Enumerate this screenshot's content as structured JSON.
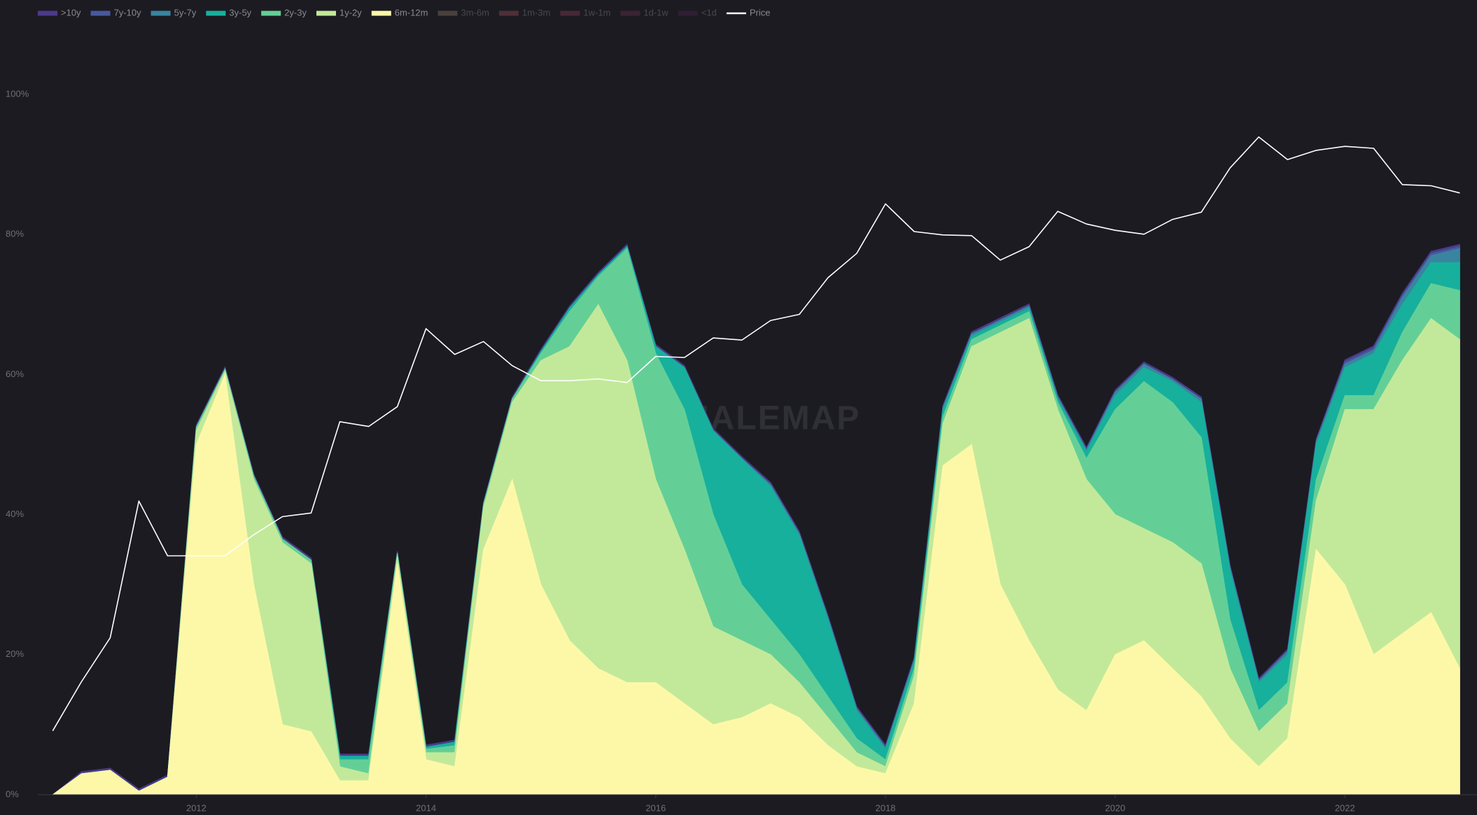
{
  "chart_data": {
    "type": "area",
    "watermark": "WHALEMAP",
    "x": [
      2010.75,
      2011.0,
      2011.25,
      2011.5,
      2011.75,
      2012.0,
      2012.25,
      2012.5,
      2012.75,
      2013.0,
      2013.25,
      2013.5,
      2013.75,
      2014.0,
      2014.25,
      2014.5,
      2014.75,
      2015.0,
      2015.25,
      2015.5,
      2015.75,
      2016.0,
      2016.25,
      2016.5,
      2016.75,
      2017.0,
      2017.25,
      2017.5,
      2017.75,
      2018.0,
      2018.25,
      2018.5,
      2018.75,
      2019.0,
      2019.25,
      2019.5,
      2019.75,
      2020.0,
      2020.25,
      2020.5,
      2020.75,
      2021.0,
      2021.25,
      2021.5,
      2021.75,
      2022.0,
      2022.25,
      2022.5,
      2022.75,
      2023.0
    ],
    "xlim": [
      2010.62,
      2023.15
    ],
    "xticks": [
      2012,
      2014,
      2016,
      2018,
      2020,
      2022
    ],
    "ylim": [
      0,
      100
    ],
    "yticks": [
      {
        "value": 0,
        "label": "0%"
      },
      {
        "value": 20,
        "label": "20%"
      },
      {
        "value": 40,
        "label": "40%"
      },
      {
        "value": 60,
        "label": "60%"
      },
      {
        "value": 80,
        "label": "80%"
      },
      {
        "value": 100,
        "label": "100%"
      }
    ],
    "y2lim": [
      0.024,
      150000
    ],
    "y2scale": "log",
    "grid": false,
    "legend": "top-left",
    "series": [
      {
        "name": ">10y",
        "color": "#4b3a8a",
        "values": [
          0,
          0.3,
          0.3,
          0.3,
          0.3,
          0.3,
          0.3,
          0.3,
          0.3,
          0.3,
          0.3,
          0.3,
          0.3,
          0.3,
          0.3,
          0.3,
          0.3,
          0.3,
          0.3,
          0.3,
          0.3,
          0.3,
          0.3,
          0.3,
          0.3,
          0.3,
          0.3,
          0.3,
          0.3,
          0.3,
          0.3,
          0.3,
          0.3,
          0.3,
          0.3,
          0.3,
          0.3,
          0.3,
          0.3,
          0.3,
          0.3,
          0.3,
          0.3,
          0.3,
          0.3,
          0.3,
          0.3,
          0.3,
          0.3,
          0.3
        ]
      },
      {
        "name": "7y-10y",
        "color": "#46599e",
        "values": [
          0,
          0,
          0,
          0,
          0,
          0,
          0,
          0,
          0,
          0,
          0,
          0,
          0,
          0,
          0,
          0,
          0,
          0,
          0,
          0,
          0,
          0,
          0,
          0,
          0,
          0,
          0,
          0,
          0,
          0,
          0,
          0,
          0,
          0,
          0,
          0,
          0,
          0,
          0,
          0,
          0,
          0,
          0,
          0,
          0,
          0.3,
          0.3,
          0.3,
          0.3,
          0.3
        ]
      },
      {
        "name": "5y-7y",
        "color": "#3a84a0",
        "values": [
          0,
          0,
          0,
          0,
          0,
          0,
          0,
          0,
          0,
          0,
          0,
          0,
          0,
          0,
          0,
          0,
          0,
          0,
          0,
          0,
          0,
          0,
          0,
          0,
          0,
          0.3,
          0.3,
          0.3,
          0.3,
          0.3,
          0.3,
          0.3,
          0.3,
          0.3,
          0.3,
          0.3,
          0.3,
          0.5,
          0.5,
          0.3,
          0.5,
          0.5,
          0.3,
          0.5,
          0.5,
          0.5,
          0.5,
          1,
          1,
          2
        ]
      },
      {
        "name": "3y-5y",
        "color": "#17b09c",
        "values": [
          0,
          0,
          0,
          0,
          0,
          0,
          0,
          0,
          0,
          0,
          0.5,
          0.5,
          0,
          0.3,
          0.5,
          0,
          0,
          0.3,
          0.5,
          0.3,
          0.3,
          1,
          6,
          12,
          18,
          19,
          17,
          11,
          4,
          1.5,
          1,
          1,
          0.5,
          0.5,
          0.5,
          0.5,
          1,
          2,
          2,
          3,
          5,
          7,
          4,
          4,
          5,
          4,
          6,
          4,
          3,
          4
        ]
      },
      {
        "name": "2y-3y",
        "color": "#63cf97",
        "values": [
          0,
          0,
          0,
          0,
          0,
          0.5,
          0.3,
          0.5,
          0.5,
          0.5,
          1,
          2,
          0.5,
          0.5,
          1,
          0.5,
          0.5,
          1,
          5,
          4,
          16,
          18,
          20,
          16,
          8,
          5,
          4,
          3,
          2,
          1,
          1,
          1,
          1,
          1,
          1,
          1,
          3,
          15,
          21,
          20,
          18,
          7,
          3,
          3,
          3,
          2,
          2,
          4,
          5,
          7
        ]
      },
      {
        "name": "1y-2y",
        "color": "#c2e99a",
        "values": [
          0,
          0,
          0,
          0,
          0,
          2,
          0.5,
          15,
          26,
          24,
          2,
          1,
          1,
          1,
          2,
          6,
          11,
          32,
          42,
          52,
          46,
          29,
          22,
          14,
          11,
          7,
          5,
          4,
          2,
          1,
          4,
          6,
          14,
          36,
          46,
          40,
          33,
          20,
          16,
          18,
          19,
          10,
          5,
          5,
          7,
          25,
          35,
          39,
          42,
          47
        ]
      },
      {
        "name": "6m-12m",
        "color": "#fdf8a8",
        "values": [
          0,
          3,
          3.5,
          0.5,
          2.5,
          50,
          60,
          30,
          10,
          9,
          2,
          2,
          33,
          5,
          4,
          35,
          45,
          30,
          22,
          18,
          16,
          16,
          13,
          10,
          11,
          13,
          11,
          7,
          4,
          3,
          13,
          47,
          50,
          30,
          22,
          15,
          12,
          20,
          22,
          18,
          14,
          8,
          4,
          8,
          35,
          30,
          20,
          23,
          26,
          18
        ]
      },
      {
        "name": "3m-6m",
        "color": "#8c7a62",
        "visible": false
      },
      {
        "name": "1m-3m",
        "color": "#9b4d5a",
        "visible": false
      },
      {
        "name": "1w-1m",
        "color": "#8a3d55",
        "visible": false
      },
      {
        "name": "1d-1w",
        "color": "#6b2f4f",
        "visible": false
      },
      {
        "name": "<1d",
        "color": "#4a2550",
        "visible": false
      },
      {
        "name": "Price",
        "color": "#ffffff",
        "type": "line",
        "axis": "y2",
        "values": [
          0.1,
          0.3,
          0.8,
          17,
          5,
          5,
          5,
          8,
          12,
          13,
          100,
          90,
          140,
          800,
          450,
          600,
          350,
          250,
          250,
          260,
          240,
          430,
          420,
          650,
          620,
          960,
          1100,
          2500,
          4300,
          13000,
          7000,
          6500,
          6400,
          3700,
          5000,
          11000,
          8300,
          7200,
          6600,
          9200,
          10800,
          29000,
          58000,
          35000,
          43000,
          47000,
          45000,
          20000,
          19500,
          16600
        ]
      }
    ]
  }
}
